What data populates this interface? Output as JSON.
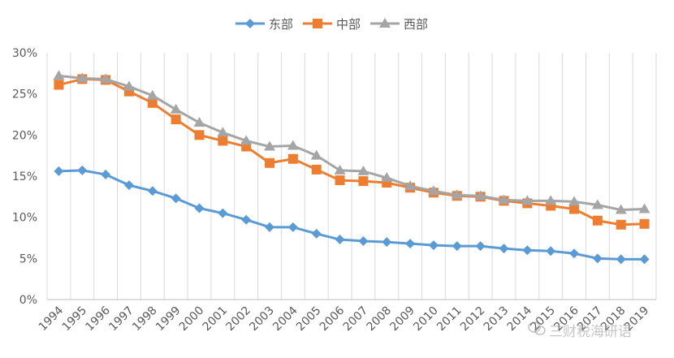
{
  "chart_data": {
    "type": "line",
    "title": "",
    "xlabel": "",
    "ylabel": "",
    "categories": [
      "1994",
      "1995",
      "1996",
      "1997",
      "1998",
      "1999",
      "2000",
      "2001",
      "2002",
      "2003",
      "2004",
      "2005",
      "2006",
      "2007",
      "2008",
      "2009",
      "2010",
      "2011",
      "2012",
      "2013",
      "2014",
      "2015",
      "2016",
      "2017",
      "2018",
      "2019"
    ],
    "ylim": [
      0,
      0.3
    ],
    "yticks": [
      "0%",
      "5%",
      "10%",
      "15%",
      "20%",
      "25%",
      "30%"
    ],
    "grid": "vertical",
    "legend_position": "top",
    "series": [
      {
        "name": "东部",
        "color": "#5b9bd5",
        "marker": "diamond",
        "values": [
          0.156,
          0.157,
          0.152,
          0.139,
          0.132,
          0.123,
          0.111,
          0.105,
          0.097,
          0.088,
          0.088,
          0.08,
          0.073,
          0.071,
          0.07,
          0.068,
          0.066,
          0.065,
          0.065,
          0.062,
          0.06,
          0.059,
          0.056,
          0.05,
          0.049,
          0.049
        ]
      },
      {
        "name": "中部",
        "color": "#ed7d31",
        "marker": "square",
        "values": [
          0.261,
          0.268,
          0.267,
          0.253,
          0.239,
          0.219,
          0.2,
          0.193,
          0.186,
          0.166,
          0.171,
          0.158,
          0.145,
          0.144,
          0.142,
          0.136,
          0.13,
          0.126,
          0.125,
          0.12,
          0.117,
          0.114,
          0.11,
          0.096,
          0.091,
          0.092
        ]
      },
      {
        "name": "西部",
        "color": "#a5a5a5",
        "marker": "triangle",
        "values": [
          0.272,
          0.269,
          0.268,
          0.259,
          0.248,
          0.231,
          0.215,
          0.203,
          0.193,
          0.186,
          0.187,
          0.175,
          0.157,
          0.156,
          0.148,
          0.138,
          0.132,
          0.127,
          0.126,
          0.121,
          0.12,
          0.12,
          0.119,
          0.115,
          0.109,
          0.11
        ]
      }
    ]
  },
  "watermark": {
    "text": "三财税海研语",
    "icon": "wechat-icon"
  }
}
